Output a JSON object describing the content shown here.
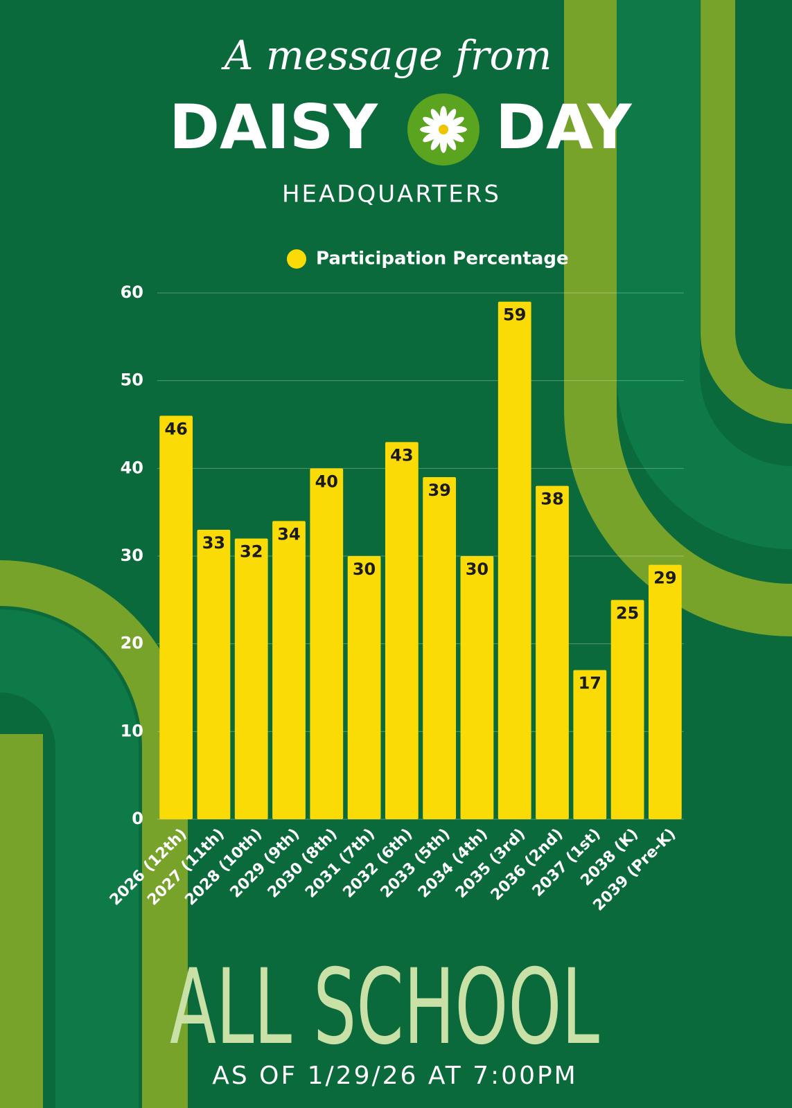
{
  "header": {
    "kicker": "A message from",
    "brand_left": "DAISY",
    "brand_right": "DAY",
    "subtitle": "HEADQUARTERS"
  },
  "chart_data": {
    "type": "bar",
    "categories": [
      "2026 (12th)",
      "2027 (11th)",
      "2028 (10th)",
      "2029 (9th)",
      "2030 (8th)",
      "2031 (7th)",
      "2032 (6th)",
      "2033 (5th)",
      "2034 (4th)",
      "2035 (3rd)",
      "2036 (2nd)",
      "2037 (1st)",
      "2038 (K)",
      "2039 (Pre-K)"
    ],
    "series": [
      {
        "name": "Participation Percentage",
        "color": "#fadb05",
        "values": [
          46,
          33,
          32,
          34,
          40,
          30,
          43,
          39,
          30,
          59,
          38,
          17,
          25,
          29
        ]
      }
    ],
    "ylim": [
      0,
      60
    ],
    "yticks": [
      0,
      10,
      20,
      30,
      40,
      50,
      60
    ],
    "grid": true,
    "legend": "top"
  },
  "footer": {
    "title": "ALL SCHOOL",
    "note": "AS OF 1/29/26 AT 7:00PM"
  }
}
